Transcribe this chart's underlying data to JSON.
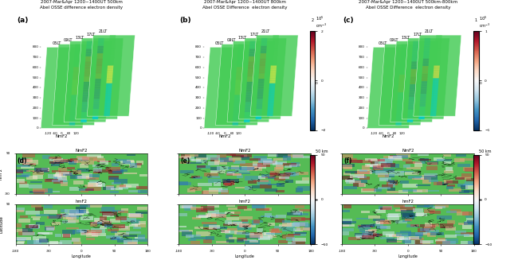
{
  "titles": [
    "2007-Mar&Apr 1200~1400UT 500km\nAbel OSSE difference electron density",
    "2007-Mar&Apr 1200~1400UT 800km\nAbel OSSE Difference  electron density",
    "2007-Mar&Apr 1200~1400UT 500km-800km\nAbel OSSE Difference  electron density"
  ],
  "panel_labels_3d": [
    "(a)",
    "(b)",
    "(c)"
  ],
  "panel_labels_map": [
    "(d)",
    "(e)",
    "(f)"
  ],
  "lt_labels": [
    "05LT",
    "09LT",
    "13LT",
    "17LT",
    "21LT"
  ],
  "nmf2_label": "NmF2",
  "hmf2_label": "hmF2",
  "latitude_label": "Latitude",
  "longitude_label": "Longitude",
  "altitude_ticks": [
    0,
    100,
    200,
    300,
    400,
    500,
    600,
    700,
    800
  ],
  "xlon_ticks": [
    -120,
    -60,
    0,
    60,
    120
  ],
  "lon_ticks": [
    -180,
    -90,
    0,
    90,
    180
  ],
  "lat_ticks_map": [
    -90,
    90
  ],
  "green_plane": "#44cc55",
  "fig_bg": "#ffffff",
  "cb1_vmax": 2,
  "cb1_vmin": -2,
  "cb2_vmax": 1,
  "cb2_vmin": -1,
  "cb3_vmax": 50,
  "cb3_vmin": -50,
  "cb4_vmax": 50,
  "cb4_vmin": -50
}
